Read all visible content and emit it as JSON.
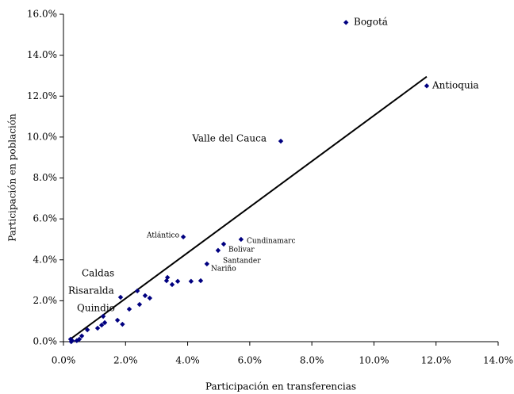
{
  "chart_data": {
    "type": "scatter",
    "xlabel": "Participación en transferencias",
    "ylabel": "Participación en población",
    "color": "#000080",
    "x": [
      0.23,
      0.25,
      0.28,
      0.43,
      0.51,
      0.59,
      0.77,
      1.1,
      1.23,
      1.33,
      1.28,
      1.74,
      1.84,
      1.9,
      2.12,
      2.38,
      2.45,
      2.63,
      2.78,
      3.35,
      3.32,
      3.5,
      3.68,
      4.11,
      4.42,
      4.62,
      4.98,
      5.16,
      5.72,
      3.86,
      7.0,
      9.1,
      11.7
    ],
    "y": [
      0.12,
      0.0,
      0.05,
      0.05,
      0.12,
      0.28,
      0.58,
      0.66,
      0.81,
      0.93,
      1.24,
      1.05,
      2.17,
      0.85,
      1.59,
      2.48,
      1.82,
      2.25,
      2.13,
      3.14,
      2.98,
      2.79,
      2.95,
      2.95,
      2.98,
      3.8,
      4.46,
      4.77,
      5.0,
      5.12,
      9.8,
      15.6,
      12.5
    ],
    "trendline": {
      "x": [
        0.2,
        11.7
      ],
      "y": [
        0.1,
        12.95
      ]
    },
    "annotations": [
      "Bogotá",
      "Antioquia",
      "Valle del Cauca",
      "Atlántico",
      "Cundinamarc",
      "Bolivar",
      "Santander",
      "Nariño",
      "Caldas",
      "Risaralda",
      "Quindio"
    ],
    "xlim": [
      0,
      14
    ],
    "ylim": [
      0,
      16
    ],
    "xticks": [
      {
        "value": 0,
        "label": "0.0%"
      },
      {
        "value": 2,
        "label": "2.0%"
      },
      {
        "value": 4,
        "label": "4.0%"
      },
      {
        "value": 6,
        "label": "6.0%"
      },
      {
        "value": 8,
        "label": "8.0%"
      },
      {
        "value": 10,
        "label": "10.0%"
      },
      {
        "value": 12,
        "label": "12.0%"
      },
      {
        "value": 14,
        "label": "14.0%"
      }
    ],
    "yticks": [
      {
        "value": 0,
        "label": "0.0%"
      },
      {
        "value": 2,
        "label": "2.0%"
      },
      {
        "value": 4,
        "label": "4.0%"
      },
      {
        "value": 6,
        "label": "6.0%"
      },
      {
        "value": 8,
        "label": "8.0%"
      },
      {
        "value": 10,
        "label": "10.0%"
      },
      {
        "value": 12,
        "label": "12.0%"
      },
      {
        "value": 14,
        "label": "14.0%"
      },
      {
        "value": 16,
        "label": "16.0%"
      }
    ],
    "grid": false
  }
}
